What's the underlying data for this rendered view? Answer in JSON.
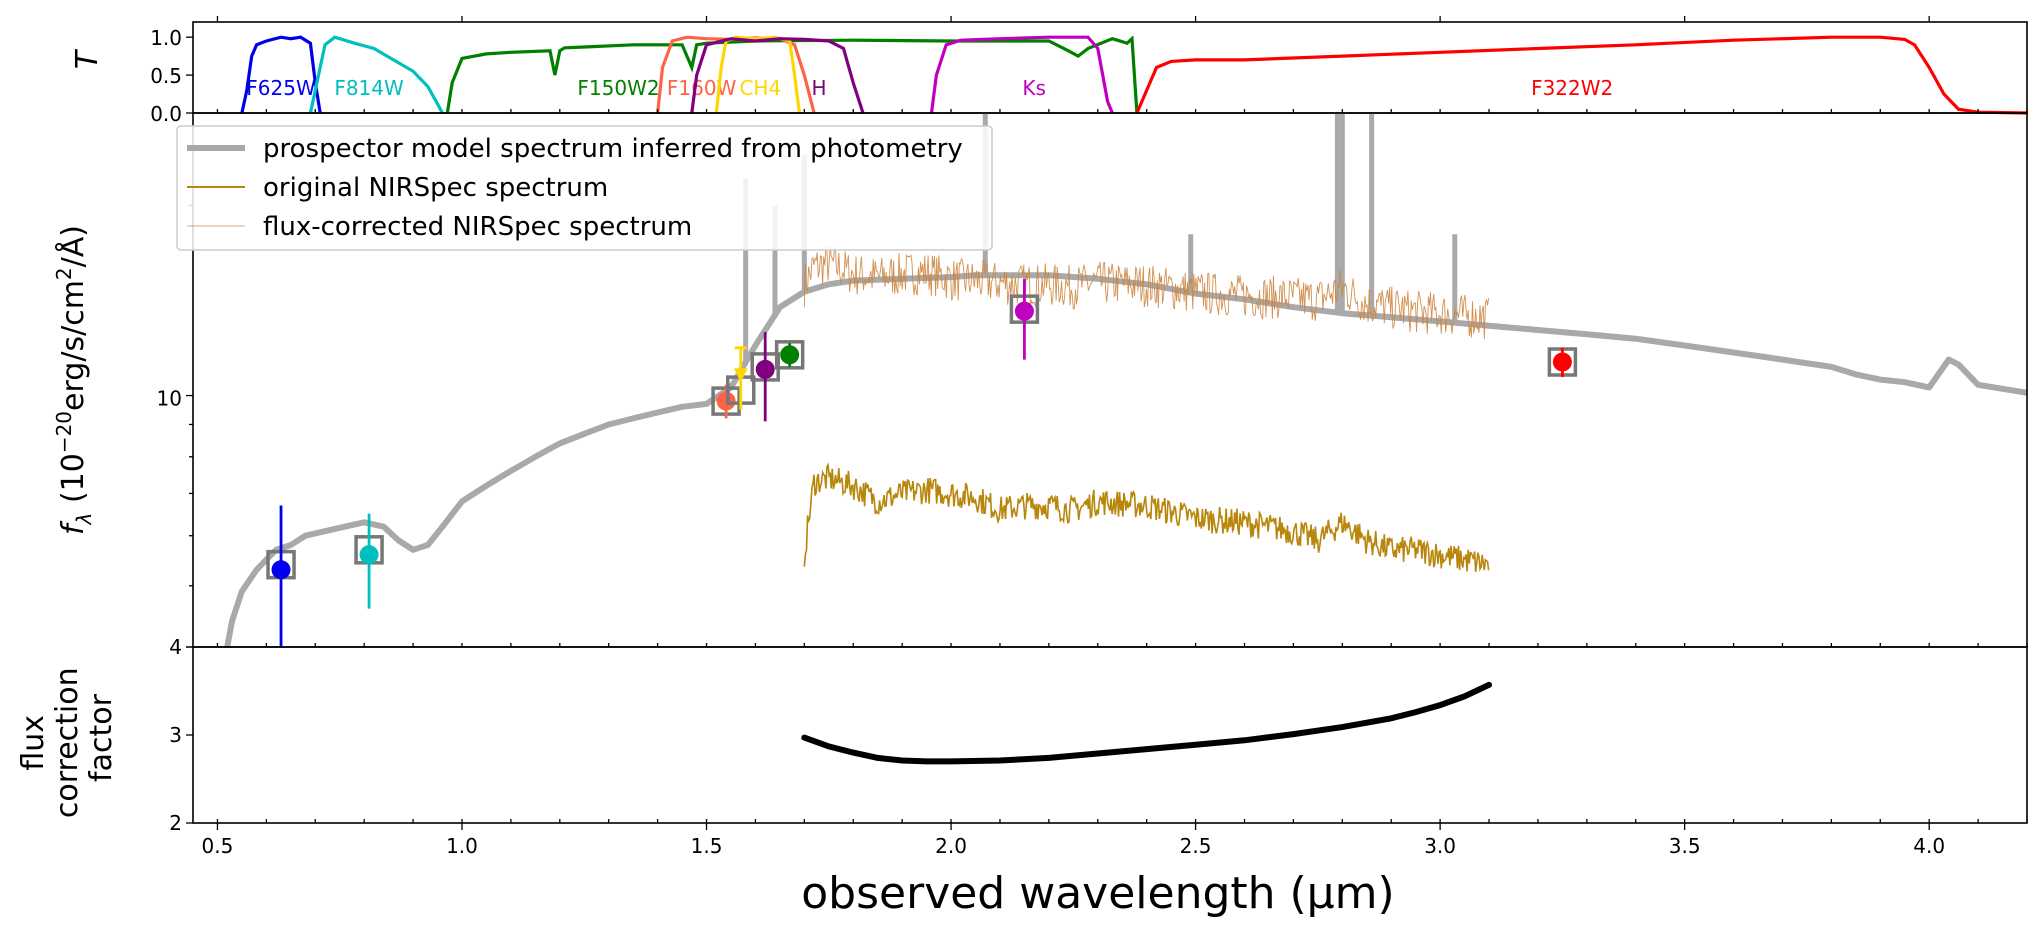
{
  "chart_data": [
    {
      "type": "line",
      "panel": "filter transmission",
      "ylabel": "T",
      "ylim": [
        0,
        1.2
      ],
      "yticks": [
        0.0,
        0.5,
        1.0
      ],
      "ytick_labels": [
        "0.0",
        "0.5",
        "1.0"
      ],
      "filters": [
        {
          "name": "F625W",
          "color": "#0000ee",
          "x": [
            0.55,
            0.56,
            0.57,
            0.58,
            0.6,
            0.63,
            0.65,
            0.67,
            0.69,
            0.7,
            0.71
          ],
          "y": [
            0,
            0.3,
            0.75,
            0.9,
            0.95,
            1.0,
            0.98,
            1.0,
            0.92,
            0.4,
            0
          ],
          "label_x": 0.63
        },
        {
          "name": "F814W",
          "color": "#00bfbf",
          "x": [
            0.69,
            0.7,
            0.72,
            0.74,
            0.78,
            0.82,
            0.86,
            0.9,
            0.93,
            0.95,
            0.96
          ],
          "y": [
            0,
            0.3,
            0.9,
            1.0,
            0.92,
            0.85,
            0.7,
            0.55,
            0.35,
            0.12,
            0
          ],
          "label_x": 0.81
        },
        {
          "name": "F150W2",
          "color": "#007f00",
          "x": [
            0.97,
            0.98,
            1.0,
            1.05,
            1.1,
            1.18,
            1.19,
            1.2,
            1.21,
            1.25,
            1.35,
            1.45,
            1.47,
            1.48,
            1.5,
            1.6,
            1.8,
            2.0,
            2.1,
            2.2,
            2.24,
            2.26,
            2.28,
            2.33,
            2.36,
            2.37,
            2.38
          ],
          "y": [
            0,
            0.4,
            0.72,
            0.78,
            0.8,
            0.82,
            0.5,
            0.82,
            0.86,
            0.87,
            0.9,
            0.9,
            0.6,
            0.9,
            0.92,
            0.95,
            0.96,
            0.95,
            0.95,
            0.95,
            0.82,
            0.75,
            0.85,
            0.98,
            0.92,
            0.98,
            0
          ],
          "label_x": 1.32
        },
        {
          "name": "F160W",
          "color": "#ff6347",
          "x": [
            1.4,
            1.41,
            1.43,
            1.46,
            1.5,
            1.55,
            1.6,
            1.65,
            1.68,
            1.7,
            1.72
          ],
          "y": [
            0,
            0.6,
            0.95,
            1.0,
            0.98,
            0.97,
            0.99,
            0.98,
            0.9,
            0.5,
            0
          ],
          "label_x": 1.49
        },
        {
          "name": "CH4",
          "color": "#ffd700",
          "x": [
            1.52,
            1.53,
            1.54,
            1.56,
            1.6,
            1.64,
            1.67,
            1.68,
            1.69
          ],
          "y": [
            0,
            0.6,
            0.95,
            1.0,
            0.98,
            1.0,
            0.95,
            0.5,
            0
          ],
          "label_x": 1.61
        },
        {
          "name": "H",
          "color": "#800080",
          "x": [
            1.47,
            1.48,
            1.5,
            1.55,
            1.6,
            1.65,
            1.7,
            1.75,
            1.78,
            1.8,
            1.82
          ],
          "y": [
            0,
            0.5,
            0.9,
            0.98,
            0.95,
            0.98,
            0.97,
            0.95,
            0.85,
            0.4,
            0
          ],
          "label_x": 1.73
        },
        {
          "name": "Ks",
          "color": "#bf00bf",
          "x": [
            1.96,
            1.97,
            1.99,
            2.02,
            2.1,
            2.2,
            2.28,
            2.3,
            2.31,
            2.32,
            2.33
          ],
          "y": [
            0,
            0.5,
            0.9,
            0.96,
            0.98,
            1.0,
            1.0,
            0.85,
            0.5,
            0.15,
            0
          ],
          "label_x": 2.17
        },
        {
          "name": "F322W2",
          "color": "#ff0000",
          "x": [
            2.38,
            2.4,
            2.42,
            2.45,
            2.5,
            2.6,
            2.8,
            3.0,
            3.2,
            3.4,
            3.6,
            3.8,
            3.9,
            3.95,
            3.97,
            4.0,
            4.03,
            4.06,
            4.1,
            4.2
          ],
          "y": [
            0,
            0.3,
            0.6,
            0.68,
            0.7,
            0.7,
            0.75,
            0.8,
            0.85,
            0.9,
            0.96,
            1.0,
            1.0,
            0.97,
            0.9,
            0.6,
            0.25,
            0.05,
            0.01,
            0
          ],
          "label_x": 3.27
        }
      ]
    },
    {
      "type": "line",
      "panel": "spectral energy distribution",
      "xlabel": "observed wavelength (μm)",
      "ylabel": "f_λ (10^-20 erg/s/cm²/Å)",
      "yscale": "log",
      "ylim": [
        4,
        28
      ],
      "ytick_labels": [
        "4",
        "10"
      ],
      "legend_location": "upper-left",
      "legend": [
        "prospector model spectrum inferred from photometry",
        "original NIRSpec spectrum",
        "flux-corrected NIRSpec spectrum"
      ],
      "series": [
        {
          "name": "prospector model spectrum inferred from photometry",
          "color": "#a9a9a9",
          "x": [
            0.52,
            0.53,
            0.55,
            0.58,
            0.6,
            0.62,
            0.65,
            0.68,
            0.72,
            0.76,
            0.8,
            0.84,
            0.87,
            0.9,
            0.93,
            0.96,
            1.0,
            1.05,
            1.1,
            1.15,
            1.2,
            1.25,
            1.3,
            1.35,
            1.4,
            1.45,
            1.5,
            1.55,
            1.6,
            1.65,
            1.7,
            1.75,
            1.8,
            1.9,
            2.0,
            2.05,
            2.1,
            2.2,
            2.3,
            2.4,
            2.5,
            2.6,
            2.7,
            2.8,
            2.9,
            3.0,
            3.1,
            3.2,
            3.3,
            3.4,
            3.5,
            3.6,
            3.7,
            3.8,
            3.85,
            3.9,
            3.95,
            4.0,
            4.04,
            4.06,
            4.1,
            4.2
          ],
          "y": [
            4.0,
            4.4,
            4.9,
            5.3,
            5.5,
            5.7,
            5.8,
            6.0,
            6.1,
            6.2,
            6.3,
            6.2,
            5.9,
            5.7,
            5.8,
            6.2,
            6.8,
            7.2,
            7.6,
            8.0,
            8.4,
            8.7,
            9.0,
            9.2,
            9.4,
            9.6,
            9.7,
            10.3,
            12.0,
            13.8,
            14.6,
            15.0,
            15.2,
            15.3,
            15.4,
            15.5,
            15.5,
            15.5,
            15.3,
            15.0,
            14.5,
            14.2,
            13.8,
            13.5,
            13.3,
            13.1,
            12.9,
            12.7,
            12.5,
            12.3,
            12.0,
            11.7,
            11.4,
            11.1,
            10.8,
            10.6,
            10.5,
            10.3,
            11.4,
            11.2,
            10.4,
            10.1
          ]
        },
        {
          "name": "original NIRSpec spectrum",
          "color": "#b8860b",
          "x": [
            1.7,
            1.72,
            1.75,
            1.8,
            1.85,
            1.9,
            1.95,
            2.0,
            2.05,
            2.1,
            2.15,
            2.2,
            2.25,
            2.3,
            2.4,
            2.5,
            2.6,
            2.7,
            2.75,
            2.8,
            2.85,
            2.9,
            2.95,
            3.0,
            3.05,
            3.1
          ],
          "y": [
            5.6,
            7.3,
            7.4,
            7.2,
            6.8,
            7.0,
            7.1,
            7.0,
            6.9,
            6.6,
            6.7,
            6.7,
            6.6,
            6.8,
            6.7,
            6.4,
            6.3,
            6.1,
            5.9,
            6.3,
            5.9,
            5.7,
            5.7,
            5.6,
            5.5,
            5.4
          ]
        },
        {
          "name": "flux-corrected NIRSpec spectrum",
          "color": "#cd853f",
          "x": [
            1.7,
            1.72,
            1.75,
            1.8,
            1.85,
            1.9,
            1.95,
            2.0,
            2.05,
            2.1,
            2.15,
            2.2,
            2.25,
            2.3,
            2.4,
            2.5,
            2.6,
            2.7,
            2.75,
            2.8,
            2.85,
            2.9,
            2.95,
            3.0,
            3.05,
            3.1
          ],
          "y": [
            15.0,
            16.0,
            16.2,
            15.6,
            15.4,
            15.6,
            15.7,
            15.3,
            15.2,
            15.1,
            15.0,
            15.0,
            14.9,
            15.1,
            15.0,
            14.6,
            14.4,
            14.3,
            14.2,
            14.8,
            14.0,
            13.8,
            13.6,
            13.5,
            13.4,
            13.3
          ]
        }
      ],
      "photometry": [
        {
          "filter": "F625W",
          "color": "#0000ee",
          "x": 0.63,
          "y": 5.3,
          "yerr_low": 4.0,
          "yerr_high": 6.7,
          "model_box": 5.4
        },
        {
          "filter": "F814W",
          "color": "#00bfbf",
          "x": 0.81,
          "y": 5.6,
          "yerr_low": 4.6,
          "yerr_high": 6.5,
          "model_box": 5.7
        },
        {
          "filter": "F160W",
          "color": "#ff6347",
          "x": 1.54,
          "y": 9.8,
          "yerr_low": 9.2,
          "yerr_high": 10.4,
          "model_box": 9.8
        },
        {
          "filter": "CH4",
          "color": "#ffd700",
          "x": 1.57,
          "y": 10.8,
          "yerr_low": 9.5,
          "yerr_high": 11.9,
          "model_box": 10.2,
          "upper_limit": true
        },
        {
          "filter": "H",
          "color": "#800080",
          "x": 1.62,
          "y": 11.0,
          "yerr_low": 9.1,
          "yerr_high": 12.6,
          "model_box": 11.1
        },
        {
          "filter": "F150W2",
          "color": "#007f00",
          "x": 1.67,
          "y": 11.6,
          "yerr_low": 11.1,
          "yerr_high": 12.1,
          "model_box": 11.6
        },
        {
          "filter": "Ks",
          "color": "#bf00bf",
          "x": 2.15,
          "y": 13.6,
          "yerr_low": 11.4,
          "yerr_high": 15.3,
          "model_box": 13.7
        },
        {
          "filter": "F322W2",
          "color": "#ff0000",
          "x": 3.25,
          "y": 11.3,
          "yerr_low": 10.7,
          "yerr_high": 11.9,
          "model_box": 11.3
        }
      ]
    },
    {
      "type": "line",
      "panel": "flux correction",
      "xlabel": "observed wavelength (μm)",
      "ylabel": "flux correction factor",
      "ylim": [
        2,
        4
      ],
      "yticks": [
        2,
        3,
        4
      ],
      "ytick_labels": [
        "2",
        "3",
        "4"
      ],
      "series": [
        {
          "name": "flux correction factor",
          "color": "#000000",
          "x": [
            1.7,
            1.75,
            1.8,
            1.85,
            1.9,
            1.95,
            2.0,
            2.1,
            2.2,
            2.3,
            2.4,
            2.5,
            2.6,
            2.7,
            2.8,
            2.9,
            2.95,
            3.0,
            3.05,
            3.1
          ],
          "y": [
            2.97,
            2.87,
            2.8,
            2.74,
            2.71,
            2.7,
            2.7,
            2.71,
            2.74,
            2.79,
            2.84,
            2.89,
            2.94,
            3.01,
            3.09,
            3.19,
            3.26,
            3.34,
            3.44,
            3.57
          ]
        }
      ]
    }
  ],
  "xaxis": {
    "xlim": [
      0.45,
      4.2
    ],
    "ticks": [
      0.5,
      1.0,
      1.5,
      2.0,
      2.5,
      3.0,
      3.5,
      4.0
    ],
    "tick_labels": [
      "0.5",
      "1.0",
      "1.5",
      "2.0",
      "2.5",
      "3.0",
      "3.5",
      "4.0"
    ],
    "label": "observed wavelength (μm)"
  },
  "labels": {
    "t_axis": "T",
    "sed_axis_main": "f",
    "sed_axis_sub": "λ",
    "sed_axis_unit_a": " (10",
    "sed_axis_exp": "−20",
    "sed_axis_unit_b": "erg/s/cm",
    "sed_axis_sq": "2",
    "sed_axis_unit_c": "/Å)",
    "corr_axis_line1": "flux",
    "corr_axis_line2": "correction",
    "corr_axis_line3": "factor",
    "x_axis_label": "observed wavelength (μm)"
  }
}
